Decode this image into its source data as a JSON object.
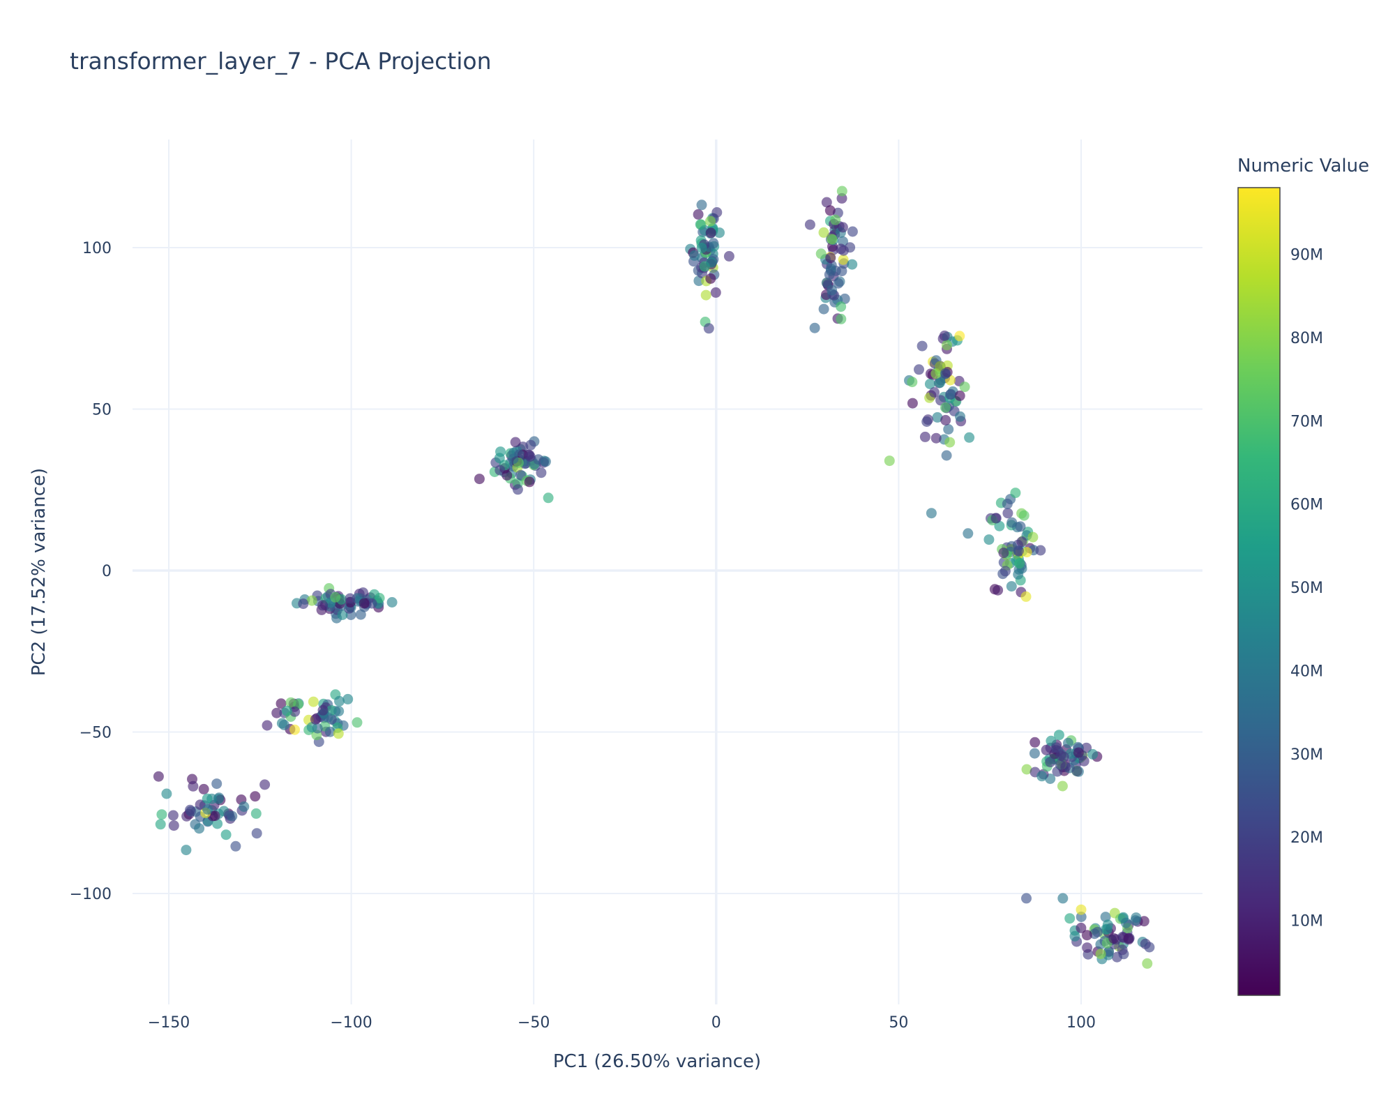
{
  "chart_data": {
    "type": "scatter",
    "title": "transformer_layer_7 - PCA Projection",
    "xlabel": "PC1 (26.50% variance)",
    "ylabel": "PC2 (17.52% variance)",
    "xlim": [
      -150,
      132
    ],
    "ylim": [
      -133,
      133
    ],
    "x_ticks": [
      -150,
      -100,
      -50,
      0,
      50,
      100
    ],
    "y_ticks": [
      -100,
      -50,
      0,
      50,
      100
    ],
    "x_tick_labels": [
      "−150",
      "−100",
      "−50",
      "0",
      "50",
      "100"
    ],
    "y_tick_labels": [
      "−100",
      "−50",
      "0",
      "50",
      "100"
    ],
    "grid": true,
    "colorscale": "viridis",
    "colorbar": {
      "title": "Numeric Value",
      "min": 1000000,
      "max": 98000000,
      "ticks": [
        10000000,
        20000000,
        30000000,
        40000000,
        50000000,
        60000000,
        70000000,
        80000000,
        90000000
      ],
      "tick_labels": [
        "10M",
        "20M",
        "30M",
        "40M",
        "50M",
        "60M",
        "70M",
        "80M",
        "90M"
      ]
    },
    "clusters": [
      {
        "center": [
          -102,
          -10
        ],
        "spread": [
          6.5,
          1.8
        ],
        "n": 60
      },
      {
        "center": [
          -110,
          -45
        ],
        "spread": [
          6,
          3.5
        ],
        "n": 50
      },
      {
        "center": [
          -138,
          -75
        ],
        "spread": [
          7,
          5
        ],
        "n": 50
      },
      {
        "center": [
          -53,
          33
        ],
        "spread": [
          3.5,
          3
        ],
        "n": 55
      },
      {
        "center": [
          -3,
          100
        ],
        "spread": [
          2,
          7
        ],
        "n": 55
      },
      {
        "center": [
          32,
          98
        ],
        "spread": [
          2.2,
          9
        ],
        "n": 60
      },
      {
        "center": [
          61,
          58
        ],
        "spread": [
          3.5,
          10
        ],
        "n": 65
      },
      {
        "center": [
          82,
          7
        ],
        "spread": [
          4,
          8
        ],
        "n": 60
      },
      {
        "center": [
          95,
          -58
        ],
        "spread": [
          4,
          3
        ],
        "n": 60
      },
      {
        "center": [
          108,
          -113
        ],
        "spread": [
          5,
          4
        ],
        "n": 60
      }
    ],
    "points_sample": [
      {
        "x": 34.5,
        "y": 117.5,
        "value": 75000000
      },
      {
        "x": -3,
        "y": 77,
        "value": 68000000
      },
      {
        "x": -2,
        "y": 75,
        "value": 20000000
      },
      {
        "x": 47.5,
        "y": 34,
        "value": 78000000
      },
      {
        "x": -46,
        "y": 22.5,
        "value": 62000000
      },
      {
        "x": 69,
        "y": 11.5,
        "value": 38000000
      },
      {
        "x": -103.5,
        "y": -50.5,
        "value": 88000000
      },
      {
        "x": 100,
        "y": -105,
        "value": 95000000
      },
      {
        "x": 85,
        "y": -101.5,
        "value": 25000000
      },
      {
        "x": 95,
        "y": -101.5,
        "value": 40000000
      }
    ]
  }
}
